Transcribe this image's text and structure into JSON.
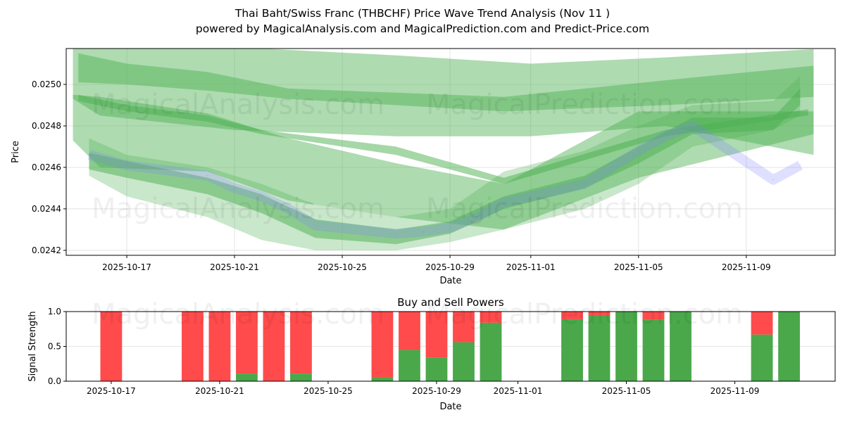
{
  "title_line1": "Thai Baht/Swiss Franc (THBCHF) Price Wave Trend Analysis (Nov 11 )",
  "title_line2": "powered by MagicalAnalysis.com and MagicalPrediction.com and Predict-Price.com",
  "watermarks": [
    "MagicalAnalysis.com",
    "MagicalPrediction.com"
  ],
  "colors": {
    "band_light": "#4caf50",
    "price_line": "#8080ff",
    "buy": "#4aa84a",
    "sell": "#ff4b4b"
  },
  "chart_data": [
    {
      "type": "area",
      "title": "",
      "xlabel": "Date",
      "ylabel": "Price",
      "x_origin": "2025-10-17",
      "xlim_days": [
        -2.25,
        26.3
      ],
      "ylim": [
        0.024176,
        0.025173
      ],
      "xticks": [
        {
          "day": 0,
          "label": "2025-10-17"
        },
        {
          "day": 4,
          "label": "2025-10-21"
        },
        {
          "day": 8,
          "label": "2025-10-25"
        },
        {
          "day": 12,
          "label": "2025-10-29"
        },
        {
          "day": 15,
          "label": "2025-11-01"
        },
        {
          "day": 19,
          "label": "2025-11-05"
        },
        {
          "day": 23,
          "label": "2025-11-09"
        }
      ],
      "yticks": [
        {
          "v": 0.0242,
          "label": "0.0242"
        },
        {
          "v": 0.0244,
          "label": "0.0244"
        },
        {
          "v": 0.0246,
          "label": "0.0246"
        },
        {
          "v": 0.0248,
          "label": "0.0248"
        },
        {
          "v": 0.025,
          "label": "0.0250"
        }
      ],
      "bands": [
        {
          "x": [
            -2,
            -1,
            4,
            10,
            15,
            20,
            25.5
          ],
          "upper": [
            0.02518,
            0.02518,
            0.02518,
            0.02514,
            0.0251,
            0.02513,
            0.02517
          ],
          "lower": [
            0.02493,
            0.02485,
            0.02478,
            0.02475,
            0.02475,
            0.0248,
            0.02466
          ],
          "opacity": 0.45
        },
        {
          "x": [
            -1.8,
            0,
            3,
            6,
            10,
            14,
            20,
            25.5
          ],
          "upper": [
            0.02515,
            0.0251,
            0.02506,
            0.02498,
            0.02496,
            0.02494,
            0.02502,
            0.02509
          ],
          "lower": [
            0.02501,
            0.025,
            0.02497,
            0.02493,
            0.0249,
            0.02487,
            0.0249,
            0.02494
          ],
          "opacity": 0.45
        },
        {
          "x": [
            -2,
            -1,
            3,
            6,
            10,
            14,
            19,
            25.5
          ],
          "upper": [
            0.02495,
            0.02494,
            0.02486,
            0.02474,
            0.02462,
            0.02452,
            0.02487,
            0.02487
          ],
          "lower": [
            0.02473,
            0.0246,
            0.02458,
            0.02444,
            0.02436,
            0.0243,
            0.02455,
            0.02476
          ],
          "opacity": 0.45
        },
        {
          "x": [
            -1.8,
            0,
            3,
            5,
            10,
            14,
            20,
            25.3
          ],
          "upper": [
            0.02495,
            0.0249,
            0.02485,
            0.02478,
            0.0247,
            0.02455,
            0.02478,
            0.02488
          ],
          "lower": [
            0.02492,
            0.02487,
            0.02482,
            0.02476,
            0.02466,
            0.02452,
            0.02475,
            0.02485
          ],
          "opacity": 0.5
        },
        {
          "x": [
            -1.4,
            0,
            3,
            5,
            7,
            10,
            12,
            14,
            17,
            19,
            21,
            24,
            25
          ],
          "upper": [
            0.02474,
            0.02466,
            0.0246,
            0.02452,
            0.02442,
            0.02436,
            0.0244,
            0.02458,
            0.02468,
            0.0248,
            0.0249,
            0.02492,
            0.02504
          ],
          "lower": [
            0.02456,
            0.02446,
            0.02436,
            0.02425,
            0.0242,
            0.0242,
            0.02424,
            0.0243,
            0.0244,
            0.02452,
            0.0247,
            0.02478,
            0.02485
          ],
          "opacity": 0.3
        },
        {
          "x": [
            -1.4,
            0,
            3,
            5,
            7,
            10,
            12,
            14,
            17,
            19,
            21,
            24,
            25
          ],
          "upper": [
            0.02467,
            0.02463,
            0.02455,
            0.02447,
            0.02435,
            0.0243,
            0.02434,
            0.02446,
            0.02456,
            0.0247,
            0.02484,
            0.02484,
            0.02498
          ],
          "lower": [
            0.02459,
            0.02455,
            0.02447,
            0.02438,
            0.02426,
            0.02423,
            0.02428,
            0.0244,
            0.0245,
            0.02462,
            0.02476,
            0.02478,
            0.0249
          ],
          "opacity": 0.5
        }
      ],
      "price_series": {
        "name": "Price",
        "x": [
          -1.4,
          0,
          3,
          4,
          5,
          6,
          7,
          10,
          11,
          12,
          13,
          14,
          17,
          18,
          19,
          20,
          21,
          24,
          25
        ],
        "y": [
          0.02466,
          0.02461,
          0.02456,
          0.0245,
          0.02446,
          0.0244,
          0.02432,
          0.02428,
          0.02429,
          0.02431,
          0.02436,
          0.02443,
          0.02452,
          0.0246,
          0.02468,
          0.02475,
          0.0248,
          0.02454,
          0.02461
        ]
      }
    },
    {
      "type": "bar",
      "title": "Buy and Sell Powers",
      "xlabel": "Date",
      "ylabel": "Signal Strength",
      "ylim": [
        0,
        1
      ],
      "xlim_days": [
        -1.66,
        26.7
      ],
      "xticks": [
        {
          "day": 0,
          "label": "2025-10-17"
        },
        {
          "day": 4,
          "label": "2025-10-21"
        },
        {
          "day": 8,
          "label": "2025-10-25"
        },
        {
          "day": 12,
          "label": "2025-10-29"
        },
        {
          "day": 15,
          "label": "2025-11-01"
        },
        {
          "day": 19,
          "label": "2025-11-05"
        },
        {
          "day": 23,
          "label": "2025-11-09"
        }
      ],
      "yticks": [
        {
          "v": 0,
          "label": "0.0"
        },
        {
          "v": 0.5,
          "label": "0.5"
        },
        {
          "v": 1,
          "label": "1.0"
        }
      ],
      "days": [
        0,
        3,
        4,
        5,
        6,
        7,
        10,
        11,
        12,
        13,
        14,
        17,
        18,
        19,
        20,
        21,
        24,
        25
      ],
      "buy": [
        0,
        0,
        0,
        0.11,
        0,
        0.11,
        0.06,
        0.45,
        0.34,
        0.56,
        0.84,
        0.89,
        0.95,
        1.0,
        0.88,
        1.0,
        0.67,
        1.0
      ],
      "sell": [
        1,
        1,
        1,
        0.89,
        1,
        0.89,
        0.94,
        0.55,
        0.66,
        0.44,
        0.16,
        0.11,
        0.05,
        0.0,
        0.12,
        0.0,
        0.33,
        0.0
      ]
    }
  ]
}
